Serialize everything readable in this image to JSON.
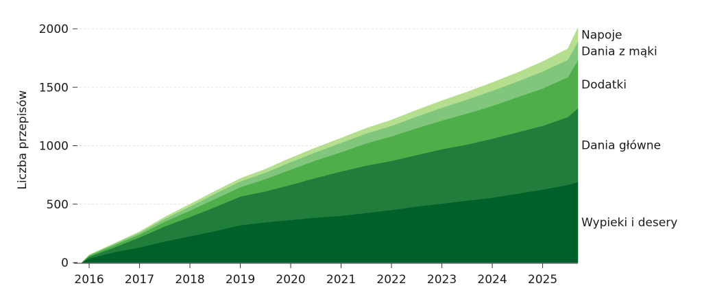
{
  "chart_data": {
    "type": "area",
    "stacked": true,
    "xlabel": "",
    "ylabel": "Liczba przepisów",
    "ylim": [
      0,
      2000
    ],
    "xlim": [
      2015.7,
      2025.7
    ],
    "yticks": [
      0,
      500,
      1000,
      1500,
      2000
    ],
    "xticks": [
      2016,
      2017,
      2018,
      2019,
      2020,
      2021,
      2022,
      2023,
      2024,
      2025
    ],
    "grid": "horizontal dashed",
    "legend": "direct labels at right end of each band",
    "x": [
      2015.85,
      2016,
      2016.5,
      2017,
      2017.5,
      2018,
      2018.5,
      2019,
      2019.5,
      2020,
      2020.5,
      2021,
      2021.5,
      2022,
      2022.5,
      2023,
      2023.5,
      2024,
      2024.5,
      2025,
      2025.5,
      2025.7
    ],
    "series": [
      {
        "name": "Wypieki i desery",
        "color": "#00602a",
        "values": [
          0,
          35,
          90,
          130,
          180,
          225,
          270,
          320,
          345,
          365,
          385,
          400,
          425,
          450,
          480,
          505,
          530,
          555,
          590,
          625,
          665,
          690
        ]
      },
      {
        "name": "Dania główne",
        "color": "#217d3b",
        "values": [
          0,
          15,
          40,
          85,
          130,
          165,
          205,
          245,
          265,
          300,
          340,
          380,
          405,
          420,
          440,
          465,
          480,
          505,
          525,
          545,
          580,
          630
        ]
      },
      {
        "name": "Dodatki",
        "color": "#4eae4a",
        "values": [
          0,
          10,
          20,
          25,
          40,
          55,
          70,
          80,
          105,
          130,
          150,
          165,
          190,
          210,
          230,
          245,
          265,
          280,
          300,
          320,
          340,
          410
        ]
      },
      {
        "name": "Dania z mąki",
        "color": "#80c67c",
        "values": [
          0,
          5,
          10,
          15,
          25,
          35,
          45,
          50,
          55,
          65,
          70,
          80,
          85,
          90,
          100,
          110,
          120,
          130,
          135,
          145,
          150,
          160
        ]
      },
      {
        "name": "Napoje",
        "color": "#b5df8e",
        "values": [
          0,
          2,
          5,
          10,
          15,
          20,
          22,
          25,
          30,
          35,
          38,
          40,
          45,
          50,
          55,
          60,
          65,
          70,
          75,
          85,
          95,
          120
        ]
      }
    ]
  }
}
